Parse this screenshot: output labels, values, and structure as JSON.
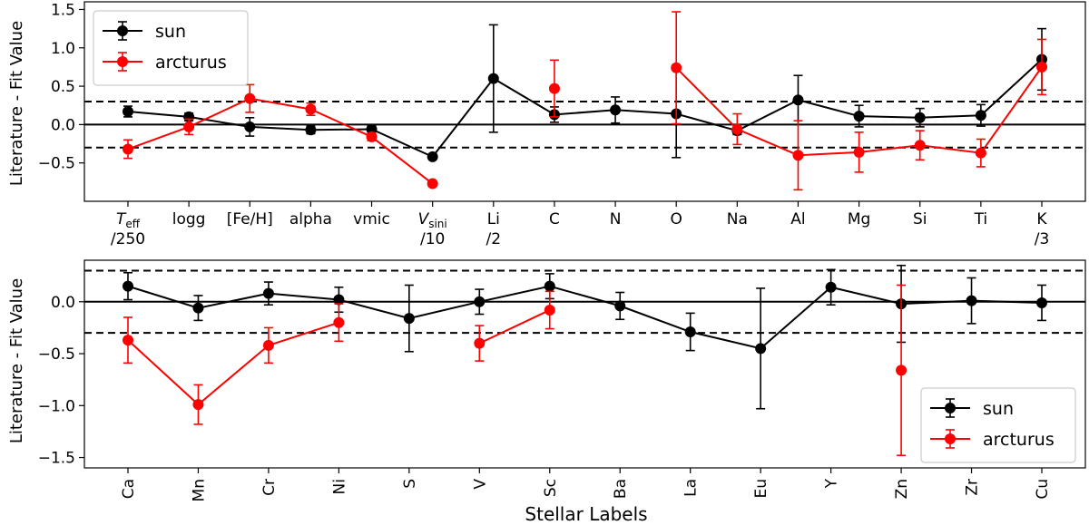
{
  "chart_data": [
    {
      "type": "line",
      "panel": "top",
      "ylabel": "Literature - Fit Value",
      "xlabel": "",
      "ylim": [
        -1.0,
        1.6
      ],
      "yticks": [
        "1.5",
        "1.0",
        "0.5",
        "0.0",
        "−0.5"
      ],
      "ytick_values": [
        1.5,
        1.0,
        0.5,
        0.0,
        -0.5
      ],
      "reference_lines": [
        0.3,
        0.0,
        -0.3
      ],
      "categories": [
        "Teff/250",
        "logg",
        "[Fe/H]",
        "alpha",
        "vmic",
        "Vsini/10",
        "Li/2",
        "C",
        "N",
        "O",
        "Na",
        "Al",
        "Mg",
        "Si",
        "Ti",
        "K/3"
      ],
      "tick_labels": [
        {
          "main": "T",
          "sub": "eff",
          "line2": "/250"
        },
        {
          "main": "logg",
          "sub": "",
          "line2": ""
        },
        {
          "main": "[Fe/H]",
          "sub": "",
          "line2": ""
        },
        {
          "main": "alpha",
          "sub": "",
          "line2": ""
        },
        {
          "main": "vmic",
          "sub": "",
          "line2": ""
        },
        {
          "main": "V",
          "sub": "sini",
          "line2": "/10"
        },
        {
          "main": "Li",
          "sub": "",
          "line2": "/2"
        },
        {
          "main": "C",
          "sub": "",
          "line2": ""
        },
        {
          "main": "N",
          "sub": "",
          "line2": ""
        },
        {
          "main": "O",
          "sub": "",
          "line2": ""
        },
        {
          "main": "Na",
          "sub": "",
          "line2": ""
        },
        {
          "main": "Al",
          "sub": "",
          "line2": ""
        },
        {
          "main": "Mg",
          "sub": "",
          "line2": ""
        },
        {
          "main": "Si",
          "sub": "",
          "line2": ""
        },
        {
          "main": "Ti",
          "sub": "",
          "line2": ""
        },
        {
          "main": "K",
          "sub": "",
          "line2": "/3"
        }
      ],
      "legend": {
        "position": "top-left"
      },
      "series": [
        {
          "name": "sun",
          "color": "#000000",
          "values": [
            0.17,
            0.1,
            -0.03,
            -0.07,
            -0.06,
            -0.42,
            0.6,
            0.13,
            0.19,
            0.14,
            -0.08,
            0.32,
            0.11,
            0.09,
            0.12,
            0.85
          ],
          "errors": [
            0.07,
            0.05,
            0.12,
            0.05,
            0.05,
            0.03,
            0.7,
            0.1,
            0.17,
            0.57,
            0.05,
            0.32,
            0.14,
            0.12,
            0.14,
            0.4
          ]
        },
        {
          "name": "arcturus",
          "color": "#ff0000",
          "values": [
            -0.32,
            -0.03,
            0.34,
            0.2,
            -0.16,
            -0.77,
            null,
            0.47,
            null,
            0.74,
            -0.06,
            -0.4,
            -0.36,
            -0.27,
            -0.37,
            0.75
          ],
          "errors": [
            0.12,
            0.1,
            0.18,
            0.08,
            0.05,
            0.03,
            null,
            0.37,
            null,
            0.73,
            0.2,
            0.45,
            0.26,
            0.19,
            0.18,
            0.36
          ],
          "segments": [
            [
              0,
              5
            ],
            [
              9,
              15
            ]
          ]
        }
      ]
    },
    {
      "type": "line",
      "panel": "bottom",
      "ylabel": "Literature - Fit Value",
      "xlabel": "Stellar Labels",
      "ylim": [
        -1.6,
        0.4
      ],
      "yticks": [
        "0.0",
        "−0.5",
        "−1.0",
        "−1.5"
      ],
      "ytick_values": [
        0.0,
        -0.5,
        -1.0,
        -1.5
      ],
      "reference_lines": [
        0.3,
        0.0,
        -0.3
      ],
      "categories": [
        "Ca",
        "Mn",
        "Cr",
        "Ni",
        "S",
        "V",
        "Sc",
        "Ba",
        "La",
        "Eu",
        "Y",
        "Zn",
        "Zr",
        "Cu"
      ],
      "legend": {
        "position": "bottom-right"
      },
      "series": [
        {
          "name": "sun",
          "color": "#000000",
          "values": [
            0.15,
            -0.06,
            0.08,
            0.02,
            -0.16,
            0.0,
            0.15,
            -0.04,
            -0.29,
            -0.45,
            0.14,
            -0.02,
            0.01,
            -0.01
          ],
          "errors": [
            0.13,
            0.12,
            0.11,
            0.12,
            0.32,
            0.12,
            0.12,
            0.13,
            0.18,
            0.58,
            0.17,
            0.37,
            0.22,
            0.17
          ]
        },
        {
          "name": "arcturus",
          "color": "#ff0000",
          "values": [
            -0.37,
            -0.99,
            -0.42,
            -0.2,
            null,
            -0.4,
            -0.08,
            null,
            null,
            null,
            null,
            -0.66,
            null,
            null
          ],
          "errors": [
            0.22,
            0.19,
            0.17,
            0.18,
            null,
            0.17,
            0.18,
            null,
            null,
            null,
            null,
            0.82,
            null,
            null
          ],
          "segments": [
            [
              0,
              3
            ],
            [
              5,
              6
            ],
            [
              11,
              11
            ]
          ]
        }
      ]
    }
  ]
}
